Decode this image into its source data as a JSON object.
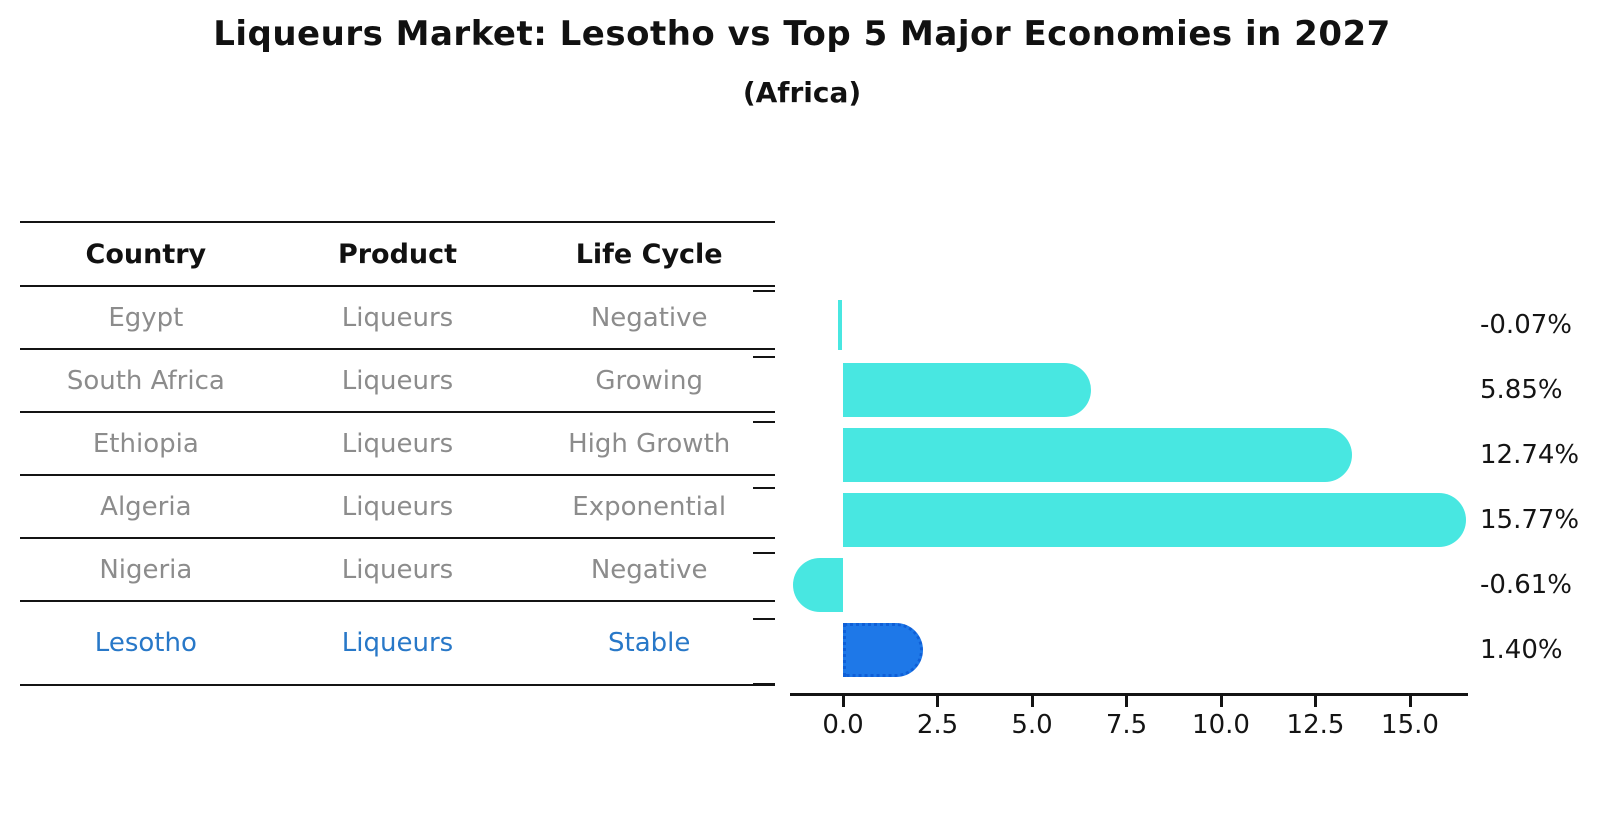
{
  "title": "Liqueurs Market: Lesotho vs Top 5 Major Economies in 2027",
  "subtitle": "(Africa)",
  "table": {
    "headers": [
      "Country",
      "Product",
      "Life Cycle"
    ],
    "rows": [
      {
        "country": "Egypt",
        "product": "Liqueurs",
        "life_cycle": "Negative",
        "highlight": false
      },
      {
        "country": "South Africa",
        "product": "Liqueurs",
        "life_cycle": "Growing",
        "highlight": false
      },
      {
        "country": "Ethiopia",
        "product": "Liqueurs",
        "life_cycle": "High Growth",
        "highlight": false
      },
      {
        "country": "Algeria",
        "product": "Liqueurs",
        "life_cycle": "Exponential",
        "highlight": false
      },
      {
        "country": "Nigeria",
        "product": "Liqueurs",
        "life_cycle": "Negative",
        "highlight": false
      },
      {
        "country": "Lesotho",
        "product": "Liqueurs",
        "life_cycle": "Stable",
        "highlight": true
      }
    ]
  },
  "chart_data": {
    "type": "bar",
    "orientation": "horizontal",
    "title": "Liqueurs Market: Lesotho vs Top 5 Major Economies in 2027 (Africa)",
    "categories": [
      "Egypt",
      "South Africa",
      "Ethiopia",
      "Algeria",
      "Nigeria",
      "Lesotho"
    ],
    "values": [
      -0.07,
      5.85,
      12.74,
      15.77,
      -0.61,
      1.4
    ],
    "value_labels": [
      "-0.07%",
      "5.85%",
      "12.74%",
      "15.77%",
      "-0.61%",
      "1.40%"
    ],
    "x_ticks": [
      0.0,
      2.5,
      5.0,
      7.5,
      10.0,
      12.5,
      15.0
    ],
    "x_tick_labels": [
      "0.0",
      "2.5",
      "5.0",
      "7.5",
      "10.0",
      "12.5",
      "15.0"
    ],
    "xlim": [
      -1.4,
      16.5
    ],
    "grid": false,
    "legend": "none",
    "highlight_index": 5
  },
  "colors": {
    "bar_default": "#48e7e1",
    "bar_highlight": "#1e78e8",
    "bar_highlight_edge": "#0f5fd7",
    "highlight_text": "#2878c8",
    "table_text": "#8c8c8c",
    "axis_text": "#141414"
  }
}
